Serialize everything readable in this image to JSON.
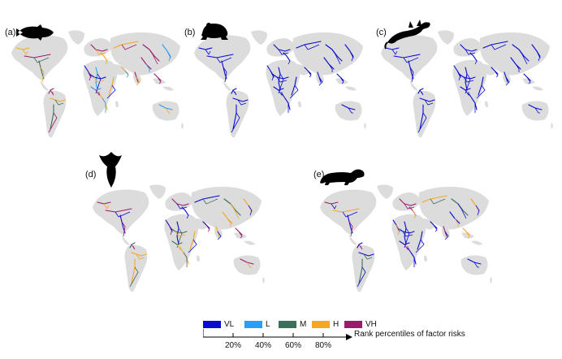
{
  "panels": [
    {
      "label": "(a)",
      "icon": "fish-icon",
      "scheme": "mixed"
    },
    {
      "label": "(b)",
      "icon": "frog-icon",
      "scheme": "blue"
    },
    {
      "label": "(c)",
      "icon": "lizard-icon",
      "scheme": "blue"
    },
    {
      "label": "(d)",
      "icon": "bird-icon",
      "scheme": "mixed-orange"
    },
    {
      "label": "(e)",
      "icon": "mammal-icon",
      "scheme": "mostly-blue"
    }
  ],
  "legend": {
    "items": [
      {
        "label": "VL",
        "color": "#0a0ad0"
      },
      {
        "label": "L",
        "color": "#2a9df4"
      },
      {
        "label": "M",
        "color": "#3c6e5a"
      },
      {
        "label": "H",
        "color": "#f5a623"
      },
      {
        "label": "VH",
        "color": "#9b1b6b"
      }
    ],
    "axis_title": "Rank percentiles of factor risks",
    "ticks": [
      "20%",
      "40%",
      "60%",
      "80%"
    ]
  },
  "colors": {
    "land": "#dcdcdc",
    "silhouette": "#000000",
    "axis": "#000000"
  }
}
